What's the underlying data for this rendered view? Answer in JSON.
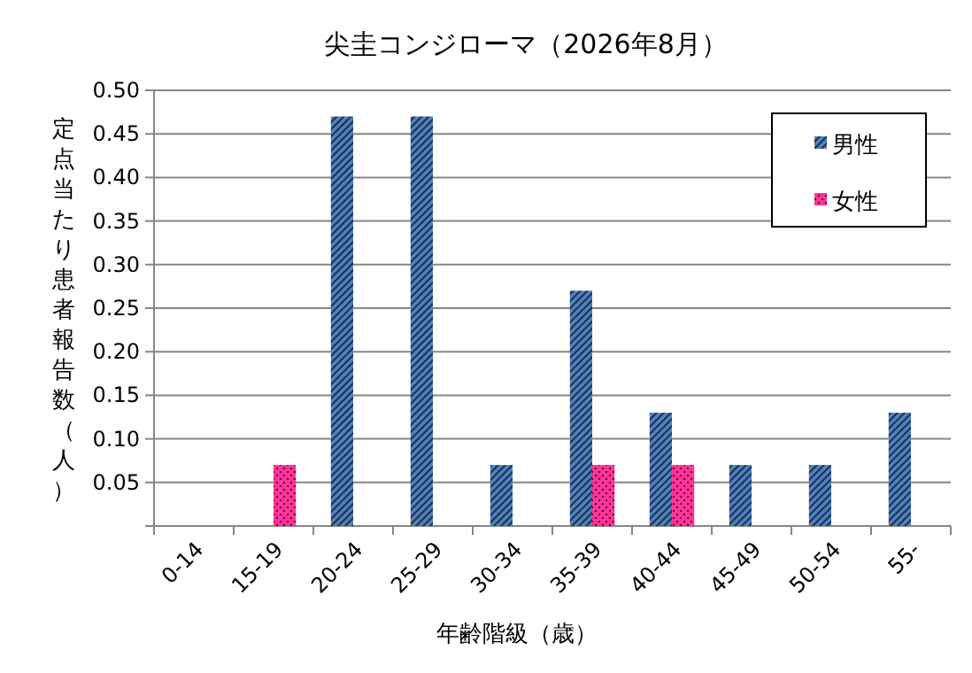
{
  "chart_data": {
    "type": "bar",
    "title": "尖圭コンジローマ（2026年8月）",
    "xlabel": "年齢階級（歳）",
    "ylabel": "定点当たり患者報告数（人）",
    "categories": [
      "0-14",
      "15-19",
      "20-24",
      "25-29",
      "30-34",
      "35-39",
      "40-44",
      "45-49",
      "50-54",
      "55-"
    ],
    "series": [
      {
        "name": "男性",
        "color": "#4f81bd",
        "values": [
          0,
          0,
          0.47,
          0.47,
          0.07,
          0.27,
          0.13,
          0.07,
          0.07,
          0.13
        ]
      },
      {
        "name": "女性",
        "color": "#ff3399",
        "values": [
          0,
          0.07,
          0,
          0,
          0,
          0.07,
          0.07,
          0,
          0,
          0
        ]
      }
    ],
    "ylim": [
      0,
      0.5
    ],
    "yticks": [
      {
        "value": 0,
        "label": null
      },
      0.05,
      {
        "value": 0.1,
        "label": "0.10"
      },
      0.15,
      {
        "value": 0.2,
        "label": "0.20"
      },
      0.25,
      {
        "value": 0.3,
        "label": "0.30"
      },
      0.35,
      {
        "value": 0.4,
        "label": "0.40"
      },
      0.45,
      {
        "value": 0.5,
        "label": "0.50"
      }
    ],
    "grid": "y",
    "legend": "top right"
  }
}
